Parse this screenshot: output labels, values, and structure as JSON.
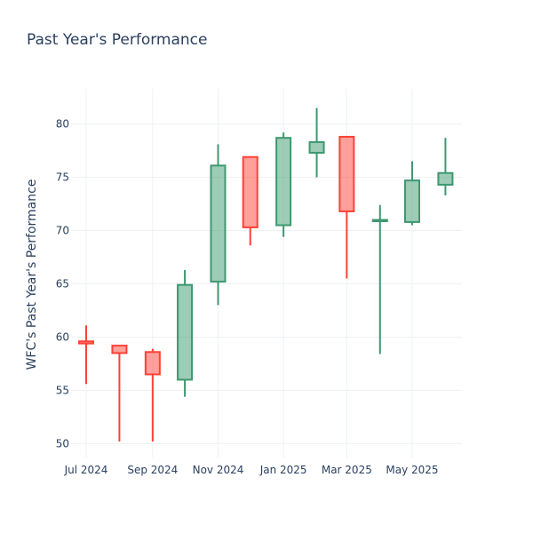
{
  "chart_data": {
    "type": "candlestick",
    "title": "Past Year's Performance",
    "xlabel": "",
    "ylabel": "WFC's Past Year's Performance",
    "ylim": [
      48.7,
      83.3
    ],
    "y_ticks": [
      50,
      55,
      60,
      65,
      70,
      75,
      80
    ],
    "x_ticks": [
      {
        "label": "Jul 2024",
        "date": "2024-07-01"
      },
      {
        "label": "Sep 2024",
        "date": "2024-09-01"
      },
      {
        "label": "Nov 2024",
        "date": "2024-11-01"
      },
      {
        "label": "Jan 2025",
        "date": "2025-01-01"
      },
      {
        "label": "Mar 2025",
        "date": "2025-03-01"
      },
      {
        "label": "May 2025",
        "date": "2025-05-01"
      }
    ],
    "grid": true,
    "colors": {
      "increasing": "#3d9970",
      "decreasing": "#ff4136"
    },
    "candles": [
      {
        "date": "2024-07-01",
        "open": 59.6,
        "high": 61.1,
        "low": 55.6,
        "close": 59.4
      },
      {
        "date": "2024-08-01",
        "open": 59.2,
        "high": 59.2,
        "low": 50.2,
        "close": 58.5
      },
      {
        "date": "2024-09-01",
        "open": 58.6,
        "high": 58.9,
        "low": 50.2,
        "close": 56.5
      },
      {
        "date": "2024-10-01",
        "open": 56.0,
        "high": 66.3,
        "low": 54.4,
        "close": 64.9
      },
      {
        "date": "2024-11-01",
        "open": 65.2,
        "high": 78.1,
        "low": 63.0,
        "close": 76.1
      },
      {
        "date": "2024-12-01",
        "open": 76.9,
        "high": 76.9,
        "low": 68.6,
        "close": 70.3
      },
      {
        "date": "2025-01-01",
        "open": 70.5,
        "high": 79.2,
        "low": 69.4,
        "close": 78.7
      },
      {
        "date": "2025-02-01",
        "open": 77.3,
        "high": 81.5,
        "low": 75.0,
        "close": 78.3
      },
      {
        "date": "2025-03-01",
        "open": 78.8,
        "high": 78.8,
        "low": 65.5,
        "close": 71.8
      },
      {
        "date": "2025-04-01",
        "open": 70.9,
        "high": 72.4,
        "low": 58.4,
        "close": 71.0
      },
      {
        "date": "2025-05-01",
        "open": 70.8,
        "high": 76.5,
        "low": 70.5,
        "close": 74.7
      },
      {
        "date": "2025-06-01",
        "open": 74.3,
        "high": 78.7,
        "low": 73.3,
        "close": 75.4
      }
    ]
  }
}
